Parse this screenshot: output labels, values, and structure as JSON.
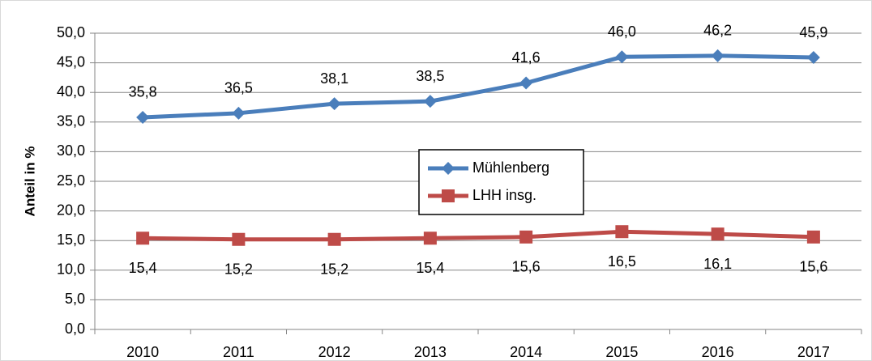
{
  "chart_data": {
    "type": "line",
    "y_label": "Anteil in %",
    "categories": [
      "2010",
      "2011",
      "2012",
      "2013",
      "2014",
      "2015",
      "2016",
      "2017"
    ],
    "series": [
      {
        "name": "Mühlenberg",
        "color": "#4a7ebb",
        "marker": "diamond",
        "values": [
          35.8,
          36.5,
          38.1,
          38.5,
          41.6,
          46.0,
          46.2,
          45.9
        ],
        "value_labels": [
          "35,8",
          "36,5",
          "38,1",
          "38,5",
          "41,6",
          "46,0",
          "46,2",
          "45,9"
        ]
      },
      {
        "name": "LHH insg.",
        "color": "#be4b48",
        "marker": "square",
        "values": [
          15.4,
          15.2,
          15.2,
          15.4,
          15.6,
          16.5,
          16.1,
          15.6
        ],
        "value_labels": [
          "15,4",
          "15,2",
          "15,2",
          "15,4",
          "15,6",
          "16,5",
          "16,1",
          "15,6"
        ]
      }
    ],
    "ylim": [
      0,
      50
    ],
    "yticks": [
      {
        "value": 0,
        "label": "0,0"
      },
      {
        "value": 5,
        "label": "5,0"
      },
      {
        "value": 10,
        "label": "10,0"
      },
      {
        "value": 15,
        "label": "15,0"
      },
      {
        "value": 20,
        "label": "20,0"
      },
      {
        "value": 25,
        "label": "25,0"
      },
      {
        "value": 30,
        "label": "30,0"
      },
      {
        "value": 35,
        "label": "35,0"
      },
      {
        "value": 40,
        "label": "40,0"
      },
      {
        "value": 45,
        "label": "45,0"
      },
      {
        "value": 50,
        "label": "50,0"
      }
    ],
    "grid": true
  }
}
